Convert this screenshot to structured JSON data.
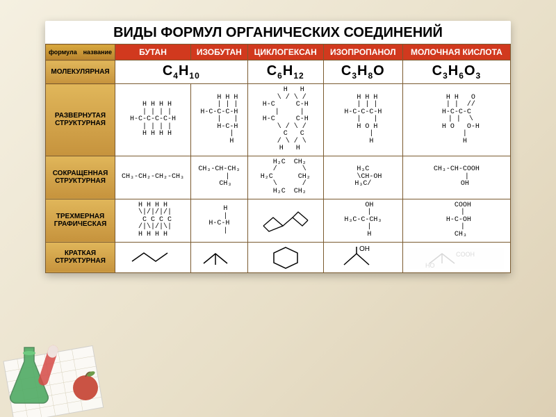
{
  "title": "ВИДЫ ФОРМУЛ ОРГАНИЧЕСКИХ СОЕДИНЕНИЙ",
  "corner_top": "название",
  "corner_bottom": "формула",
  "columns": [
    "БУТАН",
    "ИЗОБУТАН",
    "ЦИКЛОГЕКСАН",
    "ИЗОПРОПАНОЛ",
    "МОЛОЧНАЯ КИСЛОТА"
  ],
  "rows": {
    "molecular": "МОЛЕКУЛЯРНАЯ",
    "expanded": "РАЗВЕРНУТАЯ СТРУКТУРНАЯ",
    "condensed": "СОКРАЩЕННАЯ СТРУКТУРНАЯ",
    "threeD": "ТРЕХМЕРНАЯ ГРАФИЧЕСКАЯ",
    "brief": "КРАТКАЯ СТРУКТУРНАЯ"
  },
  "molecular": {
    "butane_html": "C<sub>4</sub>H<sub>10</sub>",
    "cyclohexane_html": "C<sub>6</sub>H<sub>12</sub>",
    "isopropanol_html": "C<sub>3</sub>H<sub>8</sub>O",
    "lactic_html": "C<sub>3</sub>H<sub>6</sub>O<sub>3</sub>"
  },
  "expanded": {
    "butane": "  H H H H\n  | | | |\nH-C-C-C-C-H\n  | | | |\n  H H H H",
    "isobutane": "    H H H\n    | | |\nH-C-C-C-H\n    |   |\n    H-C-H\n      |\n      H",
    "cyclohexane": "    H   H\n   \\ / \\ /\nH-C     C-H\n  |     |\nH-C     C-H\n   \\ / \\ /\n    C   C\n   / \\ / \\\n  H   H",
    "isopropanol": "  H H H\n  | | |\nH-C-C-C-H\n  |   |\n  H O H\n    |\n    H",
    "lactic": "  H H   O\n  | |  //\nH-C-C-C\n  | |  \\\n  H O   O-H\n    |\n    H"
  },
  "condensed": {
    "butane": "CH₃-CH₂-CH₂-CH₃",
    "isobutane": "CH₃-CH-CH₃\n    |\n   CH₃",
    "cyclohexane": "  H₂C  CH₂\n  /      \\\nH₂C      CH₂\n  \\      /\n  H₂C  CH₂",
    "isopropanol": "H₃C\n   \\CH-OH\nH₃C/",
    "lactic": "CH₃-CH-COOH\n     |\n    OH"
  },
  "threeD_label": {
    "butane": "H H H H\n \\|/|/|/|\n  C C C C\n /|\\|/|\\|\nH H H H",
    "isobutane": "   H\n   |\nH-C-H\n   |",
    "isopropanol": "   OH\n   |\nH₃C-C-CH₃\n   |\n   H",
    "lactic": "   COOH\n   |\n H-C-OH\n   |\n  CH₃"
  },
  "brief": {
    "isopropanol": "   OH\n   |",
    "lactic": "        COOH\nHO"
  },
  "styling": {
    "title_fontsize": 20,
    "header_bg": "#d1391e",
    "header_fg": "#ffffff",
    "rowhead_bg_top": "#e0b65a",
    "rowhead_bg_bottom": "#c6933d",
    "border_color": "#7a5a2f",
    "cell_bg": "#ffffff",
    "mono_font": "Courier New",
    "mol_fontsize": 20,
    "stru_fontsize": 10
  }
}
